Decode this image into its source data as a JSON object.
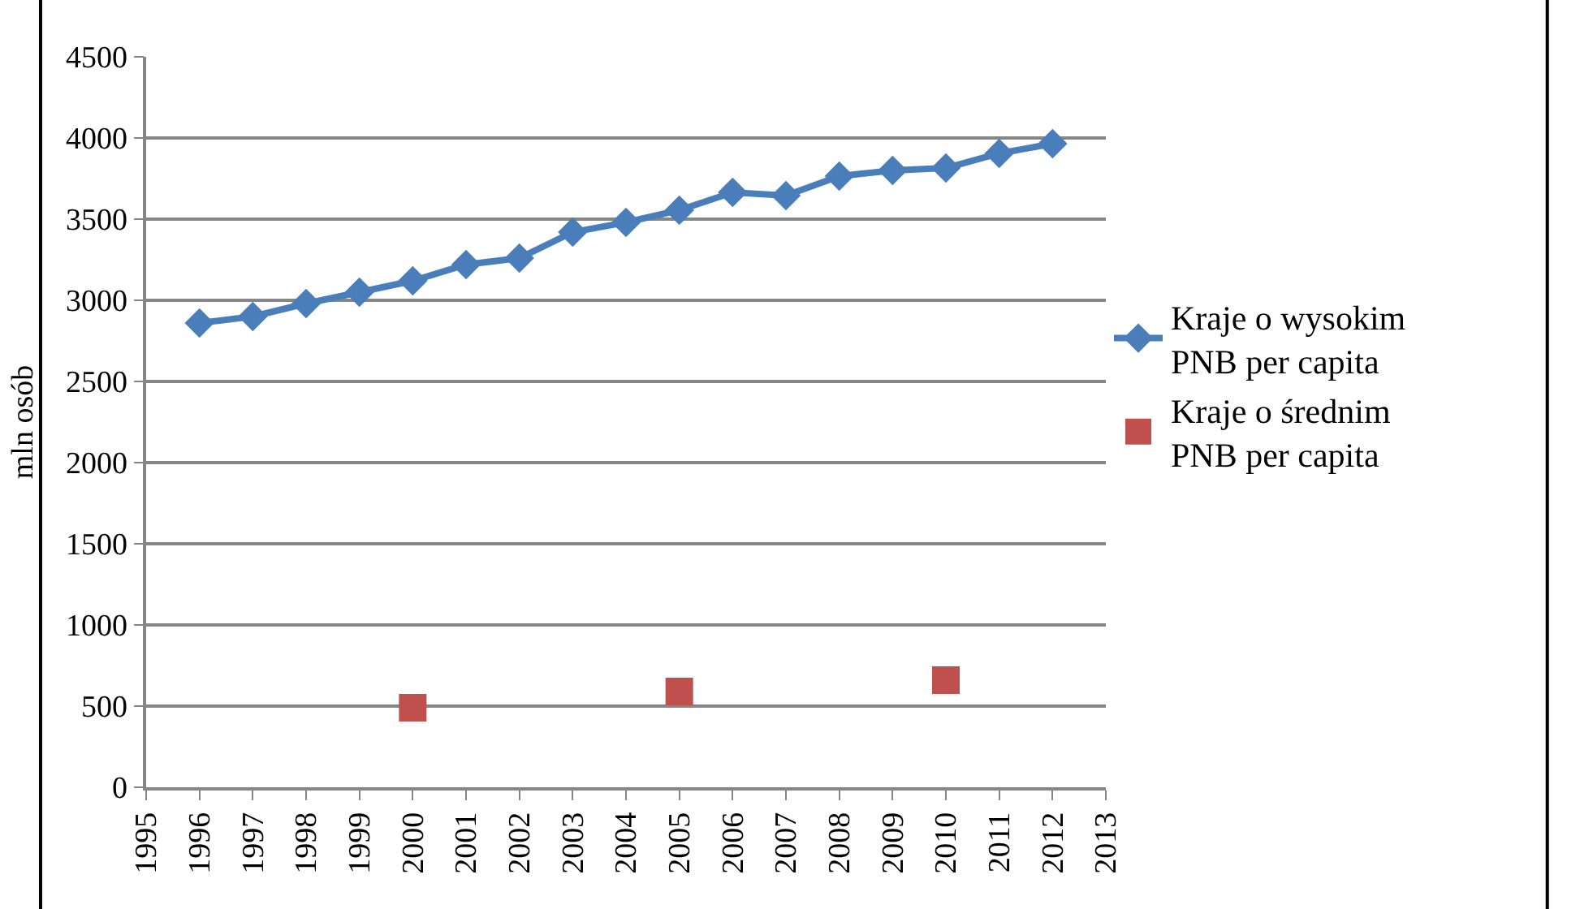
{
  "chart_data": {
    "type": "line",
    "ylabel": "mln osób",
    "xlim": [
      1995,
      2013
    ],
    "xticks": [
      1995,
      1996,
      1997,
      1998,
      1999,
      2000,
      2001,
      2002,
      2003,
      2004,
      2005,
      2006,
      2007,
      2008,
      2009,
      2010,
      2011,
      2012,
      2013
    ],
    "ylim": [
      0,
      4500
    ],
    "yticks": [
      0,
      500,
      1000,
      1500,
      2000,
      2500,
      3000,
      3500,
      4000,
      4500
    ],
    "grid": "y",
    "legend": "right",
    "series": [
      {
        "name": "Kraje o wysokim PNB per capita",
        "color": "#4a7ebb",
        "marker": "diamond",
        "line_style": "solid",
        "x": [
          1996,
          1997,
          1998,
          1999,
          2000,
          2001,
          2002,
          2003,
          2004,
          2005,
          2006,
          2007,
          2008,
          2009,
          2010,
          2011,
          2012
        ],
        "values": [
          2860,
          2900,
          2980,
          3050,
          3120,
          3220,
          3260,
          3420,
          3480,
          3555,
          3665,
          3645,
          3765,
          3800,
          3815,
          3905,
          3965
        ]
      },
      {
        "name": "Kraje o średnim PNB per capita",
        "color": "#c0504d",
        "type": "scatter",
        "marker": "square",
        "x": [
          2000,
          2005,
          2010
        ],
        "values": [
          490,
          590,
          660
        ]
      }
    ]
  }
}
